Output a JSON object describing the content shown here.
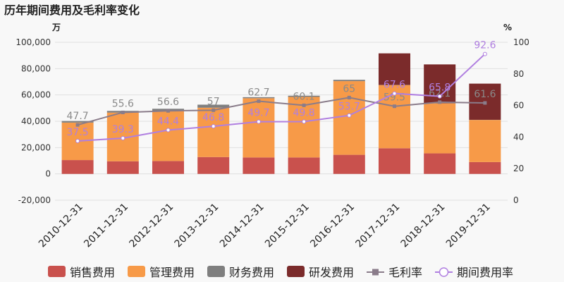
{
  "chart_data": {
    "type": "bar",
    "title": "历年期间费用及毛利率变化",
    "left_unit": "万",
    "right_unit": "%",
    "categories": [
      "2010-12-31",
      "2011-12-31",
      "2012-12-31",
      "2013-12-31",
      "2014-12-31",
      "2015-12-31",
      "2016-12-31",
      "2017-12-31",
      "2018-12-31",
      "2019-12-31"
    ],
    "left_axis": {
      "min": -20000,
      "max": 100000,
      "step": 20000,
      "tick_labels": [
        "-20,000",
        "0",
        "20,000",
        "40,000",
        "60,000",
        "80,000",
        "100,000"
      ]
    },
    "right_axis": {
      "min": 0,
      "max": 100,
      "step": 20,
      "tick_labels": [
        "0",
        "20",
        "40",
        "60",
        "80",
        "100"
      ]
    },
    "bar_series": [
      {
        "name": "销售费用",
        "color": "#c9514d",
        "values": [
          10500,
          9600,
          9800,
          12800,
          12500,
          12500,
          14500,
          19500,
          15600,
          9000
        ]
      },
      {
        "name": "管理费用",
        "color": "#f79a48",
        "values": [
          28500,
          37000,
          38000,
          37500,
          45000,
          46000,
          56000,
          48000,
          38000,
          32000
        ]
      },
      {
        "name": "财务费用",
        "color": "#7f7f7f",
        "values": [
          1200,
          1300,
          1700,
          2300,
          800,
          900,
          1000,
          100,
          100,
          100
        ]
      },
      {
        "name": "研发费用",
        "color": "#7b2b2b",
        "values": [
          0,
          0,
          0,
          0,
          0,
          0,
          0,
          24000,
          29500,
          27500
        ]
      }
    ],
    "line_series": [
      {
        "name": "毛利率",
        "color": "#8a7c8a",
        "marker": "square",
        "label_color": "#8a8a8a",
        "values": [
          47.7,
          55.6,
          56.6,
          57,
          62.7,
          60.1,
          65,
          59.5,
          62.1,
          61.6
        ],
        "labels": [
          "47.7",
          "55.6",
          "56.6",
          "57",
          "62.7",
          "60.1",
          "65",
          "59.5",
          "62.1",
          "61.6"
        ]
      },
      {
        "name": "期间费用率",
        "color": "#b07fe0",
        "marker": "circle",
        "label_color": "#b07fe0",
        "values": [
          37.5,
          39.3,
          44.4,
          46.8,
          49.7,
          49.8,
          53.7,
          67.6,
          65.8,
          92.6
        ],
        "labels": [
          "37.5",
          "39.3",
          "44.4",
          "46.8",
          "49.7",
          "49.8",
          "53.7",
          "67.6",
          "65.8",
          "92.6"
        ]
      }
    ],
    "legend_position": "bottom",
    "grid": true
  }
}
